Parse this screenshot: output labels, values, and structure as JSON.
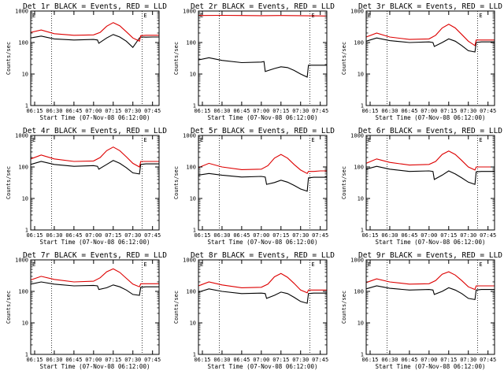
{
  "colors": {
    "events": "#000000",
    "lld": "#dd0000",
    "axis": "#000000",
    "background": "#ffffff"
  },
  "chart_data": [
    {
      "type": "line",
      "title": "Det 1r BLACK = Events, RED = LLD",
      "ylabel": "Counts/sec",
      "xlabel": "Start Time (07-Nov-08 06:12:00)",
      "x_ticks": [
        "06:15",
        "06:30",
        "06:45",
        "07:00",
        "07:15",
        "07:30",
        "07:45"
      ],
      "y_ticks": [
        "1",
        "10",
        "100",
        "1000"
      ],
      "y_scale": "log",
      "ylim": [
        1,
        1000
      ],
      "xlim": [
        "06:12",
        "07:50"
      ],
      "marker_label": "E",
      "dotted_lines": [
        "06:28",
        "07:37"
      ],
      "series": [
        {
          "name": "Events",
          "color": "#000000",
          "x": [
            "06:12",
            "06:20",
            "06:30",
            "06:45",
            "07:00",
            "07:03",
            "07:04",
            "07:10",
            "07:15",
            "07:20",
            "07:25",
            "07:30",
            "07:35",
            "07:36",
            "07:40",
            "07:45",
            "07:50"
          ],
          "y": [
            140,
            160,
            130,
            120,
            125,
            120,
            95,
            140,
            180,
            150,
            110,
            70,
            140,
            150,
            148,
            150,
            150
          ]
        },
        {
          "name": "LLD",
          "color": "#dd0000",
          "x": [
            "06:12",
            "06:20",
            "06:30",
            "06:45",
            "07:00",
            "07:05",
            "07:10",
            "07:15",
            "07:20",
            "07:25",
            "07:30",
            "07:35",
            "07:36",
            "07:40",
            "07:45",
            "07:50"
          ],
          "y": [
            210,
            250,
            190,
            170,
            175,
            210,
            330,
            430,
            340,
            220,
            140,
            110,
            165,
            170,
            170,
            170
          ]
        }
      ]
    },
    {
      "type": "line",
      "title": "Det 2r BLACK = Events, RED = LLD",
      "ylabel": "Counts/sec",
      "xlabel": "Start Time (07-Nov-08 06:12:00)",
      "x_ticks": [
        "06:15",
        "06:30",
        "06:45",
        "07:00",
        "07:15",
        "07:30",
        "07:45"
      ],
      "y_ticks": [
        "1",
        "10",
        "100",
        "1000"
      ],
      "y_scale": "log",
      "ylim": [
        1,
        1000
      ],
      "xlim": [
        "06:12",
        "07:50"
      ],
      "marker_label": "E",
      "dotted_lines": [
        "06:28",
        "07:37"
      ],
      "series": [
        {
          "name": "Events",
          "color": "#000000",
          "x": [
            "06:12",
            "06:20",
            "06:30",
            "06:45",
            "07:00",
            "07:02",
            "07:03",
            "07:10",
            "07:15",
            "07:20",
            "07:25",
            "07:30",
            "07:35",
            "07:36",
            "07:40",
            "07:45",
            "07:50"
          ],
          "y": [
            28,
            33,
            27,
            23,
            24,
            25,
            12,
            15,
            17,
            16,
            13,
            10,
            8,
            19,
            19,
            19,
            19
          ]
        },
        {
          "name": "LLD",
          "color": "#dd0000",
          "x": [
            "06:12",
            "06:30",
            "06:45",
            "07:00",
            "07:15",
            "07:30",
            "07:45",
            "07:50"
          ],
          "y": [
            720,
            730,
            720,
            710,
            720,
            710,
            700,
            690
          ]
        }
      ]
    },
    {
      "type": "line",
      "title": "Det 3r BLACK = Events, RED = LLD",
      "ylabel": "Counts/sec",
      "xlabel": "Start Time (07-Nov-08 06:12:00)",
      "x_ticks": [
        "06:15",
        "06:30",
        "06:45",
        "07:00",
        "07:15",
        "07:30",
        "07:45"
      ],
      "y_ticks": [
        "1",
        "10",
        "100",
        "1000"
      ],
      "y_scale": "log",
      "ylim": [
        1,
        1000
      ],
      "xlim": [
        "06:12",
        "07:50"
      ],
      "marker_label": "E",
      "dotted_lines": [
        "06:28",
        "07:37"
      ],
      "series": [
        {
          "name": "Events",
          "color": "#000000",
          "x": [
            "06:12",
            "06:20",
            "06:30",
            "06:45",
            "07:00",
            "07:03",
            "07:04",
            "07:10",
            "07:15",
            "07:20",
            "07:25",
            "07:30",
            "07:35",
            "07:36",
            "07:40",
            "07:45",
            "07:50"
          ],
          "y": [
            110,
            140,
            115,
            100,
            105,
            100,
            75,
            100,
            130,
            110,
            80,
            55,
            50,
            100,
            105,
            105,
            105
          ]
        },
        {
          "name": "LLD",
          "color": "#dd0000",
          "x": [
            "06:12",
            "06:20",
            "06:30",
            "06:45",
            "07:00",
            "07:05",
            "07:10",
            "07:15",
            "07:20",
            "07:25",
            "07:30",
            "07:35",
            "07:36",
            "07:40",
            "07:45",
            "07:50"
          ],
          "y": [
            150,
            200,
            150,
            125,
            130,
            170,
            290,
            380,
            290,
            180,
            110,
            80,
            120,
            120,
            120,
            120
          ]
        }
      ]
    },
    {
      "type": "line",
      "title": "Det 4r BLACK = Events, RED = LLD",
      "ylabel": "Counts/sec",
      "xlabel": "Start Time (07-Nov-08 06:12:00)",
      "x_ticks": [
        "06:15",
        "06:30",
        "06:45",
        "07:00",
        "07:15",
        "07:30",
        "07:45"
      ],
      "y_ticks": [
        "1",
        "10",
        "100",
        "1000"
      ],
      "y_scale": "log",
      "ylim": [
        1,
        1000
      ],
      "xlim": [
        "06:12",
        "07:50"
      ],
      "marker_label": "E",
      "dotted_lines": [
        "06:28",
        "07:37"
      ],
      "series": [
        {
          "name": "Events",
          "color": "#000000",
          "x": [
            "06:12",
            "06:20",
            "06:30",
            "06:45",
            "07:00",
            "07:03",
            "07:04",
            "07:10",
            "07:15",
            "07:20",
            "07:25",
            "07:30",
            "07:35",
            "07:36",
            "07:40",
            "07:45",
            "07:50"
          ],
          "y": [
            120,
            150,
            120,
            105,
            110,
            105,
            85,
            120,
            160,
            130,
            95,
            65,
            60,
            120,
            125,
            125,
            125
          ]
        },
        {
          "name": "LLD",
          "color": "#dd0000",
          "x": [
            "06:12",
            "06:20",
            "06:30",
            "06:45",
            "07:00",
            "07:05",
            "07:10",
            "07:15",
            "07:20",
            "07:25",
            "07:30",
            "07:35",
            "07:36",
            "07:40",
            "07:45",
            "07:50"
          ],
          "y": [
            180,
            240,
            180,
            150,
            155,
            200,
            330,
            430,
            330,
            210,
            130,
            100,
            150,
            150,
            150,
            150
          ]
        }
      ]
    },
    {
      "type": "line",
      "title": "Det 5r BLACK = Events, RED = LLD",
      "ylabel": "Counts/sec",
      "xlabel": "Start Time (07-Nov-08 06:12:00)",
      "x_ticks": [
        "06:15",
        "06:30",
        "06:45",
        "07:00",
        "07:15",
        "07:30",
        "07:45"
      ],
      "y_ticks": [
        "1",
        "10",
        "100",
        "1000"
      ],
      "y_scale": "log",
      "ylim": [
        1,
        1000
      ],
      "xlim": [
        "06:12",
        "07:50"
      ],
      "marker_label": "E",
      "dotted_lines": [
        "06:28",
        "07:37"
      ],
      "series": [
        {
          "name": "Events",
          "color": "#000000",
          "x": [
            "06:12",
            "06:20",
            "06:30",
            "06:45",
            "07:00",
            "07:03",
            "07:04",
            "07:10",
            "07:15",
            "07:20",
            "07:25",
            "07:30",
            "07:35",
            "07:36",
            "07:40",
            "07:45",
            "07:50"
          ],
          "y": [
            55,
            62,
            55,
            48,
            50,
            48,
            28,
            32,
            38,
            33,
            26,
            20,
            17,
            45,
            47,
            47,
            47
          ]
        },
        {
          "name": "LLD",
          "color": "#dd0000",
          "x": [
            "06:12",
            "06:20",
            "06:30",
            "06:45",
            "07:00",
            "07:05",
            "07:10",
            "07:15",
            "07:20",
            "07:25",
            "07:30",
            "07:35",
            "07:36",
            "07:40",
            "07:45",
            "07:50"
          ],
          "y": [
            95,
            130,
            100,
            82,
            85,
            110,
            190,
            250,
            190,
            120,
            80,
            62,
            72,
            72,
            75,
            75
          ]
        }
      ]
    },
    {
      "type": "line",
      "title": "Det 6r BLACK = Events, RED = LLD",
      "ylabel": "Counts/sec",
      "xlabel": "Start Time (07-Nov-08 06:12:00)",
      "x_ticks": [
        "06:15",
        "06:30",
        "06:45",
        "07:00",
        "07:15",
        "07:30",
        "07:45"
      ],
      "y_ticks": [
        "1",
        "10",
        "100",
        "1000"
      ],
      "y_scale": "log",
      "ylim": [
        1,
        1000
      ],
      "xlim": [
        "06:12",
        "07:50"
      ],
      "marker_label": "E",
      "dotted_lines": [
        "06:28",
        "07:37"
      ],
      "series": [
        {
          "name": "Events",
          "color": "#000000",
          "x": [
            "06:12",
            "06:20",
            "06:30",
            "06:45",
            "07:00",
            "07:03",
            "07:04",
            "07:10",
            "07:15",
            "07:20",
            "07:25",
            "07:30",
            "07:35",
            "07:36",
            "07:40",
            "07:45",
            "07:50"
          ],
          "y": [
            85,
            105,
            85,
            72,
            75,
            72,
            40,
            55,
            75,
            60,
            45,
            33,
            28,
            70,
            72,
            72,
            72
          ]
        },
        {
          "name": "LLD",
          "color": "#dd0000",
          "x": [
            "06:12",
            "06:20",
            "06:30",
            "06:45",
            "07:00",
            "07:05",
            "07:10",
            "07:15",
            "07:20",
            "07:25",
            "07:30",
            "07:35",
            "07:36",
            "07:40",
            "07:45",
            "07:50"
          ],
          "y": [
            130,
            180,
            140,
            115,
            120,
            150,
            250,
            320,
            250,
            160,
            100,
            80,
            100,
            100,
            100,
            100
          ]
        }
      ]
    },
    {
      "type": "line",
      "title": "Det 7r BLACK = Events, RED = LLD",
      "ylabel": "Counts/sec",
      "xlabel": "Start Time (07-Nov-08 06:12:00)",
      "x_ticks": [
        "06:15",
        "06:30",
        "06:45",
        "07:00",
        "07:15",
        "07:30",
        "07:45"
      ],
      "y_ticks": [
        "1",
        "10",
        "100",
        "1000"
      ],
      "y_scale": "log",
      "ylim": [
        1,
        1000
      ],
      "xlim": [
        "06:12",
        "07:50"
      ],
      "marker_label": "E",
      "dotted_lines": [
        "06:28",
        "07:37"
      ],
      "series": [
        {
          "name": "Events",
          "color": "#000000",
          "x": [
            "06:12",
            "06:20",
            "06:30",
            "06:45",
            "07:00",
            "07:03",
            "07:04",
            "07:10",
            "07:15",
            "07:20",
            "07:25",
            "07:30",
            "07:35",
            "07:36",
            "07:40",
            "07:45",
            "07:50"
          ],
          "y": [
            170,
            200,
            170,
            150,
            155,
            150,
            115,
            130,
            160,
            140,
            110,
            80,
            75,
            135,
            140,
            140,
            140
          ]
        },
        {
          "name": "LLD",
          "color": "#dd0000",
          "x": [
            "06:12",
            "06:20",
            "06:30",
            "06:45",
            "07:00",
            "07:05",
            "07:10",
            "07:15",
            "07:20",
            "07:25",
            "07:30",
            "07:35",
            "07:36",
            "07:40",
            "07:45",
            "07:50"
          ],
          "y": [
            230,
            300,
            240,
            200,
            210,
            270,
            420,
            520,
            400,
            260,
            170,
            140,
            175,
            175,
            175,
            175
          ]
        }
      ]
    },
    {
      "type": "line",
      "title": "Det 8r BLACK = Events, RED = LLD",
      "ylabel": "Counts/sec",
      "xlabel": "Start Time (07-Nov-08 06:12:00)",
      "x_ticks": [
        "06:15",
        "06:30",
        "06:45",
        "07:00",
        "07:15",
        "07:30",
        "07:45"
      ],
      "y_ticks": [
        "1",
        "10",
        "100",
        "1000"
      ],
      "y_scale": "log",
      "ylim": [
        1,
        1000
      ],
      "xlim": [
        "06:12",
        "07:50"
      ],
      "marker_label": "E",
      "dotted_lines": [
        "06:28",
        "07:37"
      ],
      "series": [
        {
          "name": "Events",
          "color": "#000000",
          "x": [
            "06:12",
            "06:20",
            "06:30",
            "06:45",
            "07:00",
            "07:03",
            "07:04",
            "07:10",
            "07:15",
            "07:20",
            "07:25",
            "07:30",
            "07:35",
            "07:36",
            "07:40",
            "07:45",
            "07:50"
          ],
          "y": [
            95,
            120,
            100,
            85,
            88,
            85,
            60,
            75,
            95,
            85,
            65,
            48,
            42,
            85,
            88,
            88,
            88
          ]
        },
        {
          "name": "LLD",
          "color": "#dd0000",
          "x": [
            "06:12",
            "06:20",
            "06:30",
            "06:45",
            "07:00",
            "07:05",
            "07:10",
            "07:15",
            "07:20",
            "07:25",
            "07:30",
            "07:35",
            "07:36",
            "07:40",
            "07:45",
            "07:50"
          ],
          "y": [
            150,
            200,
            160,
            130,
            135,
            170,
            290,
            370,
            280,
            180,
            110,
            90,
            110,
            110,
            110,
            110
          ]
        }
      ]
    },
    {
      "type": "line",
      "title": "Det 9r BLACK = Events, RED = LLD",
      "ylabel": "Counts/sec",
      "xlabel": "Start Time (07-Nov-08 06:12:00)",
      "x_ticks": [
        "06:15",
        "06:30",
        "06:45",
        "07:00",
        "07:15",
        "07:30",
        "07:45"
      ],
      "y_ticks": [
        "1",
        "10",
        "100",
        "1000"
      ],
      "y_scale": "log",
      "ylim": [
        1,
        1000
      ],
      "xlim": [
        "06:12",
        "07:50"
      ],
      "marker_label": "E",
      "dotted_lines": [
        "06:28",
        "07:37"
      ],
      "series": [
        {
          "name": "Events",
          "color": "#000000",
          "x": [
            "06:12",
            "06:20",
            "06:30",
            "06:45",
            "07:00",
            "07:03",
            "07:04",
            "07:10",
            "07:15",
            "07:20",
            "07:25",
            "07:30",
            "07:35",
            "07:36",
            "07:40",
            "07:45",
            "07:50"
          ],
          "y": [
            120,
            150,
            125,
            110,
            115,
            110,
            80,
            100,
            130,
            110,
            85,
            60,
            55,
            110,
            115,
            115,
            115
          ]
        },
        {
          "name": "LLD",
          "color": "#dd0000",
          "x": [
            "06:12",
            "06:20",
            "06:30",
            "06:45",
            "07:00",
            "07:05",
            "07:10",
            "07:15",
            "07:20",
            "07:25",
            "07:30",
            "07:35",
            "07:36",
            "07:40",
            "07:45",
            "07:50"
          ],
          "y": [
            190,
            250,
            200,
            170,
            175,
            220,
            350,
            420,
            330,
            220,
            140,
            115,
            150,
            150,
            150,
            150
          ]
        }
      ]
    }
  ]
}
